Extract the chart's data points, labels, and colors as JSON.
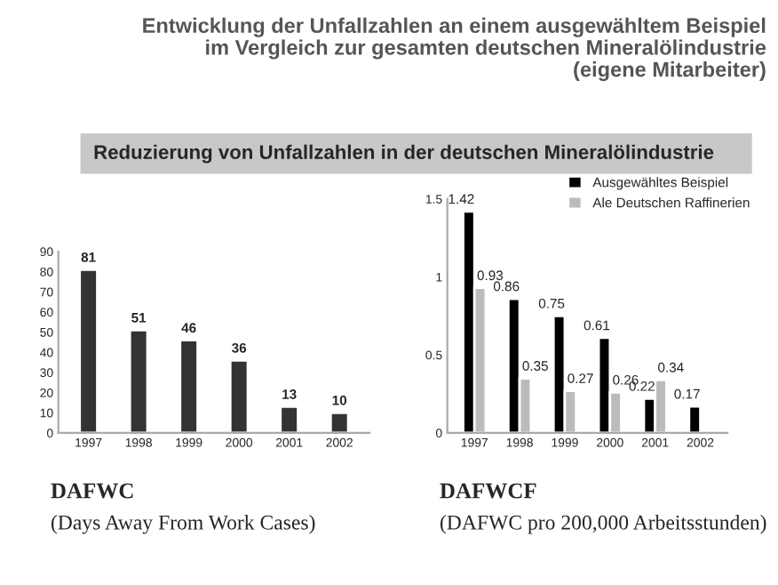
{
  "chart_data": [
    {
      "type": "bar",
      "title": "Entwicklung der Unfallzahlen an einem ausgewähltem Beispiel\nim Vergleich zur gesamten deutschen Mineralölindustrie\n(eigene Mitarbeiter)",
      "annotations": [
        "Reduzierung von Unfallzahlen in der deutschen Mineralölindustrie",
        "DAFWC",
        "(Days Away From Work Cases)"
      ],
      "categories": [
        "1997",
        "1998",
        "1999",
        "2000",
        "2001",
        "2002"
      ],
      "values": [
        81,
        51,
        46,
        36,
        13,
        10
      ],
      "color": "#333333",
      "data_labels": true,
      "ylim": [
        0,
        90
      ],
      "yticks": [
        0,
        10,
        20,
        30,
        40,
        50,
        60,
        70,
        80,
        90
      ],
      "grid": false
    },
    {
      "type": "bar",
      "annotations": [
        "DAFWCF",
        "(DAFWC pro 200,000 Arbeitsstunden)"
      ],
      "categories": [
        "1997",
        "1998",
        "1999",
        "2000",
        "2001",
        "2002"
      ],
      "series": [
        {
          "name": "Ausgewähltes Beispiel",
          "color": "#000000",
          "values": [
            1.42,
            0.86,
            0.75,
            0.61,
            0.22,
            0.17
          ]
        },
        {
          "name": "Ale Deutschen Raffinerien",
          "color": "#bbbbbb",
          "values": [
            0.93,
            0.35,
            0.27,
            0.26,
            0.34,
            null
          ]
        }
      ],
      "data_labels": true,
      "ylim": [
        0,
        1.5
      ],
      "yticks": [
        0,
        0.5,
        1,
        1.5
      ],
      "legend": "top right",
      "grid": false
    }
  ]
}
